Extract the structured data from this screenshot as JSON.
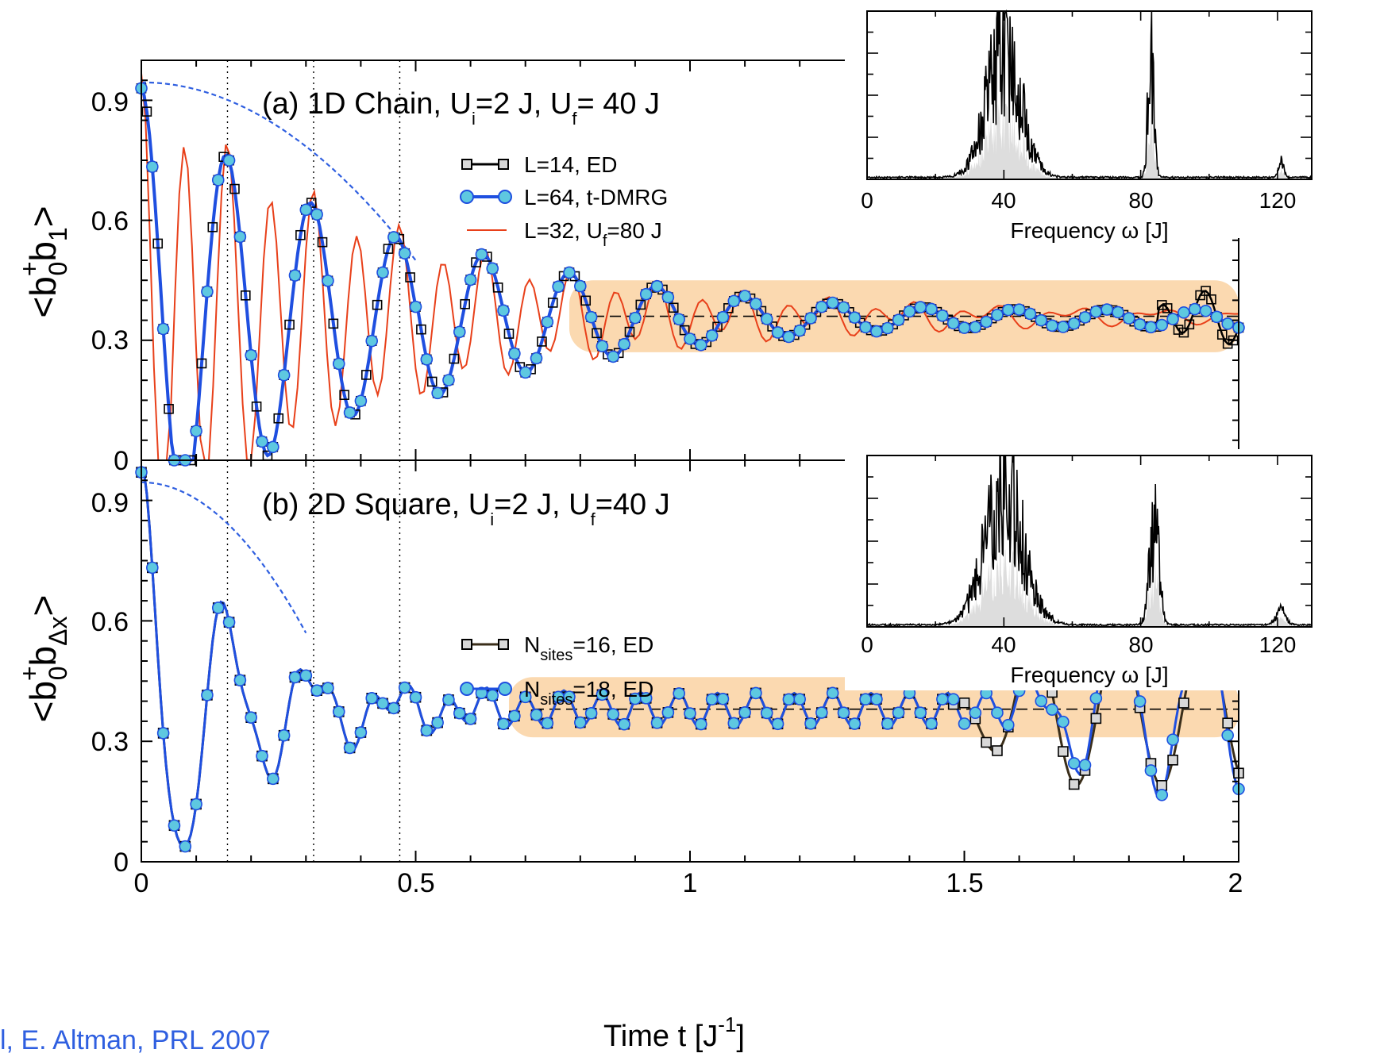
{
  "citation": "l, E. Altman, PRL 2007",
  "colors": {
    "ed_line": "#000000",
    "ed_marker_fill": "#d8d8d8",
    "dmrg_line": "#1f4fe0",
    "dmrg_marker_fill": "#5ec8e0",
    "uf80_line": "#e8401a",
    "envelope": "#2f5fe0",
    "highlight_band": "#fbd9b0",
    "spectrum_fill": "#dddddd"
  },
  "chart_data": [
    {
      "type": "line",
      "panel": "a",
      "title": {
        "pre": "(a) 1D Chain, U",
        "sub1": "i",
        "mid": "=2 J, U",
        "sub2": "f",
        "post": "= 40 J"
      },
      "ylabel": {
        "open": "<b",
        "sup": "+",
        "sub0": "0",
        "b": "b",
        "sub1": "1",
        "close": ">"
      },
      "xlim": [
        0,
        2
      ],
      "ylim": [
        0,
        1.0
      ],
      "yticks": [
        "0",
        "0.3",
        "0.6",
        "0.9"
      ],
      "legend_position": "top-center",
      "series": [
        {
          "name": "L=14, ED",
          "style": "square",
          "period": 0.155,
          "tau": 0.45,
          "equilibrium": 0.355
        },
        {
          "name": "L=64, t-DMRG",
          "style": "circle",
          "period": 0.155,
          "tau": 0.45,
          "equilibrium": 0.355
        },
        {
          "name": "L=32, U",
          "name_sub": "f",
          "name_post": "=80 J",
          "style": "thin-line",
          "period": 0.0785,
          "equilibrium": 0.36
        }
      ],
      "reference_lines": {
        "vertical_x": [
          0.157,
          0.314,
          0.471
        ],
        "horizontal_y": 0.36
      },
      "highlight_band": {
        "x": [
          0.78,
          2.0
        ],
        "y": [
          0.27,
          0.45
        ]
      },
      "envelope": {
        "y0": 0.945,
        "x_end": 0.5,
        "y_end": 0.5
      }
    },
    {
      "type": "line",
      "panel": "b",
      "title": {
        "pre": "(b) 2D Square, U",
        "sub1": "i",
        "mid": "=2 J, U",
        "sub2": "f",
        "post": "=40 J"
      },
      "ylabel": {
        "open": "<b",
        "sup": "+",
        "sub0": "0",
        "b": "b",
        "sub1": "Δx",
        "close": ">"
      },
      "xlabel": {
        "pre": "Time t [J",
        "sup": "-1",
        "post": "]"
      },
      "xlim": [
        0,
        2
      ],
      "ylim": [
        0,
        1.0
      ],
      "xticks": [
        "0",
        "0.5",
        "1",
        "1.5",
        "2"
      ],
      "yticks": [
        "0",
        "0.3",
        "0.6",
        "0.9"
      ],
      "legend_position": "center",
      "series": [
        {
          "name_pre": "N",
          "name_sub": "sites",
          "name_post": "=16, ED",
          "style": "square",
          "revival_start": 1.47
        },
        {
          "name_pre": "N",
          "name_sub": "sites",
          "name_post": "=18, ED",
          "style": "circle",
          "revival_start": 1.56
        }
      ],
      "reference_lines": {
        "vertical_x": [
          0.157,
          0.314,
          0.471
        ],
        "horizontal_y": 0.38
      },
      "highlight_band": {
        "x": [
          0.67,
          2.0
        ],
        "y": [
          0.31,
          0.46
        ]
      },
      "envelope": {
        "y0": 0.945,
        "x_end": 0.3,
        "y_end": 0.57
      }
    },
    {
      "type": "area",
      "panel": "inset-a",
      "xlabel": "Frequency ω [J]",
      "xlim": [
        0,
        130
      ],
      "xticks": [
        "0",
        "40",
        "80",
        "120"
      ],
      "peaks": [
        {
          "center": 40,
          "width": 7,
          "height": 1.0
        },
        {
          "center": 83,
          "width": 1.2,
          "height": 1.0
        },
        {
          "center": 121,
          "width": 1.0,
          "height": 0.12
        }
      ]
    },
    {
      "type": "area",
      "panel": "inset-b",
      "xlabel": "Frequency ω [J]",
      "xlim": [
        0,
        130
      ],
      "xticks": [
        "0",
        "40",
        "80",
        "120"
      ],
      "peaks": [
        {
          "center": 40,
          "width": 8,
          "height": 1.0
        },
        {
          "center": 84,
          "width": 2.0,
          "height": 0.75
        },
        {
          "center": 121,
          "width": 2.0,
          "height": 0.1
        }
      ]
    }
  ]
}
